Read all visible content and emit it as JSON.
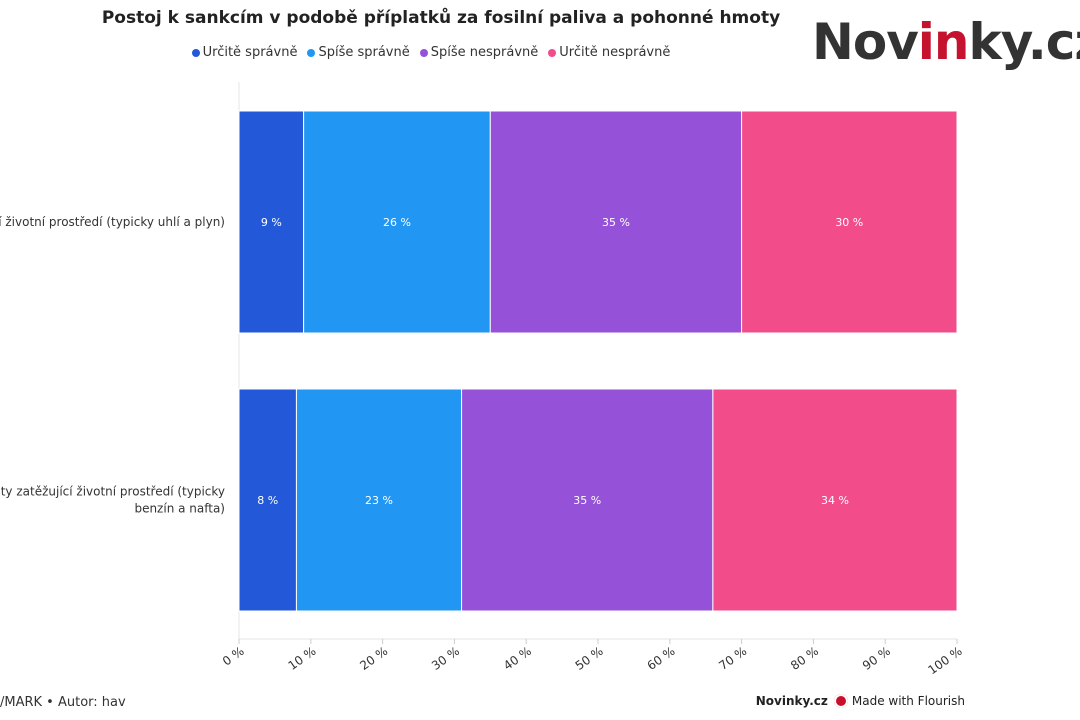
{
  "title": "Postoj k sankcím v podobě příplatků za fosilní paliva a pohonné hmoty",
  "logo": {
    "prefix": "Nov",
    "accent": "in",
    "suffix": "ky.cz"
  },
  "footer": {
    "source": "/MARK • Autor: hav",
    "brand": "Novinky.cz",
    "made_with": "Made with Flourish"
  },
  "chart_data": {
    "type": "bar",
    "orientation": "horizontal",
    "stacked": true,
    "title": "Postoj k sankcím v podobě příplatků za fosilní paliva a pohonné hmoty",
    "categories": [
      [
        "ící životní prostředí (typicky uhlí a plyn)"
      ],
      [
        "moty zatěžující životní prostředí (typicky",
        "benzín a nafta)"
      ]
    ],
    "series": [
      {
        "name": "Určitě správně",
        "color": "#2359d9",
        "values": [
          9,
          8
        ],
        "labels": [
          "9 %",
          "8 %"
        ]
      },
      {
        "name": "Spíše správně",
        "color": "#2196f3",
        "values": [
          26,
          23
        ],
        "labels": [
          "26 %",
          "23 %"
        ]
      },
      {
        "name": "Spíše nesprávně",
        "color": "#9552d9",
        "values": [
          35,
          35
        ],
        "labels": [
          "35 %",
          "35 %"
        ]
      },
      {
        "name": "Určitě nesprávně",
        "color": "#f24d8a",
        "values": [
          30,
          34
        ],
        "labels": [
          "30 %",
          "34 %"
        ]
      }
    ],
    "xlim": [
      0,
      100
    ],
    "xticks": [
      0,
      10,
      20,
      30,
      40,
      50,
      60,
      70,
      80,
      90,
      100
    ],
    "xtick_labels": [
      "0 %",
      "10 %",
      "20 %",
      "30 %",
      "40 %",
      "50 %",
      "60 %",
      "70 %",
      "80 %",
      "90 %",
      "100 %"
    ],
    "legend_position": "top"
  }
}
